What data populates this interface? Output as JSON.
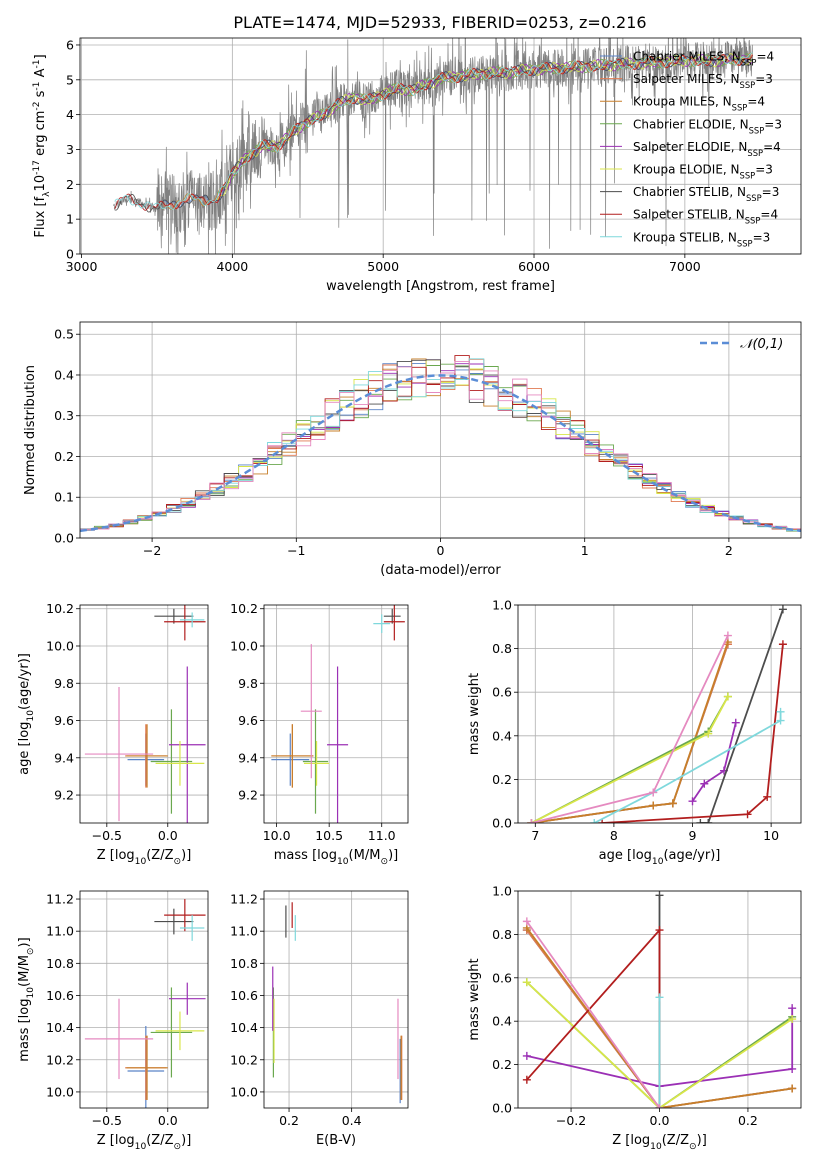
{
  "title": "PLATE=1474, MJD=52933, FIBERID=0253, z=0.216",
  "colors": {
    "chabrier_miles": "#5b84c8",
    "salpeter_miles": "#e07a52",
    "kroupa_miles": "#c77f2a",
    "chabrier_elodie": "#6aa84f",
    "salpeter_elodie": "#9b30b5",
    "kroupa_elodie": "#d8e64a",
    "chabrier_stelib": "#4d4d4d",
    "salpeter_stelib": "#b21e1e",
    "kroupa_stelib": "#7fd8dc",
    "pink_extra": "#e58ac0",
    "data": "#808080",
    "normal": "#5b8dd6"
  },
  "chart_data": [
    {
      "id": "spectrum",
      "type": "line",
      "xlabel": "wavelength [Angstrom, rest frame]",
      "ylabel": "Flux [f$_\\lambda$10$^{-17}$ erg cm$^{-2}$ s$^{-1}$ A$^{-1}$]",
      "xlim": [
        2990,
        7770
      ],
      "ylim": [
        0,
        6.2
      ],
      "xticks": [
        3000,
        4000,
        5000,
        6000,
        7000
      ],
      "yticks": [
        0,
        1,
        2,
        3,
        4,
        5,
        6
      ],
      "legend": [
        {
          "label": "Chabrier MILES, N$_{SSP}$=4",
          "color": "chabrier_miles"
        },
        {
          "label": "Salpeter MILES, N$_{SSP}$=3",
          "color": "salpeter_miles"
        },
        {
          "label": "Kroupa MILES, N$_{SSP}$=4",
          "color": "kroupa_miles"
        },
        {
          "label": "Chabrier ELODIE, N$_{SSP}$=3",
          "color": "chabrier_elodie"
        },
        {
          "label": "Salpeter ELODIE, N$_{SSP}$=4",
          "color": "salpeter_elodie"
        },
        {
          "label": "Kroupa ELODIE, N$_{SSP}$=3",
          "color": "kroupa_elodie"
        },
        {
          "label": "Chabrier STELIB, N$_{SSP}$=3",
          "color": "chabrier_stelib"
        },
        {
          "label": "Salpeter STELIB, N$_{SSP}$=4",
          "color": "salpeter_stelib"
        },
        {
          "label": "Kroupa STELIB, N$_{SSP}$=3",
          "color": "kroupa_stelib"
        }
      ],
      "continuum": [
        [
          3210,
          1.35
        ],
        [
          3300,
          1.6
        ],
        [
          3400,
          1.45
        ],
        [
          3500,
          1.3
        ],
        [
          3600,
          1.45
        ],
        [
          3700,
          1.55
        ],
        [
          3800,
          1.55
        ],
        [
          3900,
          1.6
        ],
        [
          3950,
          1.9
        ],
        [
          4000,
          2.3
        ],
        [
          4100,
          2.8
        ],
        [
          4200,
          3.1
        ],
        [
          4300,
          3.1
        ],
        [
          4400,
          3.5
        ],
        [
          4500,
          3.8
        ],
        [
          4600,
          4.0
        ],
        [
          4700,
          4.3
        ],
        [
          4800,
          4.5
        ],
        [
          4900,
          4.4
        ],
        [
          5000,
          4.6
        ],
        [
          5100,
          4.75
        ],
        [
          5200,
          4.7
        ],
        [
          5300,
          4.9
        ],
        [
          5400,
          5.05
        ],
        [
          5500,
          5.1
        ],
        [
          5600,
          5.15
        ],
        [
          5700,
          5.2
        ],
        [
          5800,
          5.2
        ],
        [
          5900,
          5.25
        ],
        [
          6000,
          5.3
        ],
        [
          6200,
          5.35
        ],
        [
          6400,
          5.4
        ],
        [
          6600,
          5.45
        ],
        [
          6800,
          5.5
        ],
        [
          7000,
          5.55
        ],
        [
          7200,
          5.55
        ],
        [
          7400,
          5.6
        ],
        [
          7450,
          5.6
        ]
      ]
    },
    {
      "id": "residuals",
      "type": "line",
      "xlabel": "(data-model)/error",
      "ylabel": "Normed distribution",
      "xlim": [
        -2.5,
        2.5
      ],
      "ylim": [
        0,
        0.53
      ],
      "xticks": [
        -2,
        -1,
        0,
        1,
        2
      ],
      "yticks": [
        0.0,
        0.1,
        0.2,
        0.3,
        0.4,
        0.5
      ],
      "legend": [
        {
          "label": "$\\mathcal{N}(0,1)$",
          "color": "normal"
        }
      ],
      "bin_width": 0.1,
      "bin_start": -2.5
    },
    {
      "id": "age_vs_Z",
      "type": "scatter",
      "xlabel": "Z [log$_{10}$($Z/Z_\\odot$)]",
      "ylabel": "age  [log$_{10}$($age/yr$)]",
      "xlim": [
        -0.72,
        0.33
      ],
      "ylim": [
        9.05,
        10.22
      ],
      "xticks": [
        -0.5,
        0.0
      ],
      "yticks": [
        9.2,
        9.4,
        9.6,
        9.8,
        10.0,
        10.2
      ],
      "points": [
        {
          "color": "chabrier_miles",
          "x": -0.18,
          "xerr": 0.15,
          "y": 9.39,
          "yerr": 0.14
        },
        {
          "color": "salpeter_miles",
          "x": -0.18,
          "xerr": 0.17,
          "y": 9.41,
          "yerr": 0.17
        },
        {
          "color": "kroupa_miles",
          "x": -0.17,
          "xerr": 0.17,
          "y": 9.41,
          "yerr": 0.17
        },
        {
          "color": "chabrier_elodie",
          "x": 0.03,
          "xerr": 0.17,
          "y": 9.38,
          "yerr": 0.28
        },
        {
          "color": "salpeter_elodie",
          "x": 0.16,
          "xerr": 0.15,
          "y": 9.47,
          "yerr": 0.42
        },
        {
          "color": "kroupa_elodie",
          "x": 0.1,
          "xerr": 0.2,
          "y": 9.37,
          "yerr": 0.12
        },
        {
          "color": "chabrier_stelib",
          "x": 0.05,
          "xerr": 0.16,
          "y": 10.16,
          "yerr": 0.04
        },
        {
          "color": "salpeter_stelib",
          "x": 0.14,
          "xerr": 0.17,
          "y": 10.13,
          "yerr": 0.1
        },
        {
          "color": "kroupa_stelib",
          "x": 0.2,
          "xerr": 0.1,
          "y": 10.14,
          "yerr": 0.04
        },
        {
          "color": "pink_extra",
          "x": -0.4,
          "xerr": 0.28,
          "y": 9.42,
          "yerr": 0.36
        }
      ]
    },
    {
      "id": "age_vs_mass",
      "type": "scatter",
      "xlabel": "mass [log$_{10}$($M/M_\\odot$)]",
      "ylabel": "",
      "xlim": [
        9.88,
        11.25
      ],
      "ylim": [
        9.05,
        10.22
      ],
      "xticks": [
        10.0,
        10.5,
        11.0
      ],
      "yticks": [
        9.2,
        9.4,
        9.6,
        9.8,
        10.0,
        10.2
      ],
      "points": [
        {
          "color": "chabrier_miles",
          "x": 10.13,
          "xerr": 0.18,
          "y": 9.39,
          "yerr": 0.14
        },
        {
          "color": "salpeter_miles",
          "x": 10.15,
          "xerr": 0.2,
          "y": 9.41,
          "yerr": 0.17
        },
        {
          "color": "kroupa_miles",
          "x": 10.15,
          "xerr": 0.2,
          "y": 9.41,
          "yerr": 0.17
        },
        {
          "color": "chabrier_elodie",
          "x": 10.37,
          "xerr": 0.12,
          "y": 9.38,
          "yerr": 0.28
        },
        {
          "color": "salpeter_elodie",
          "x": 10.58,
          "xerr": 0.1,
          "y": 9.47,
          "yerr": 0.42
        },
        {
          "color": "kroupa_elodie",
          "x": 10.38,
          "xerr": 0.12,
          "y": 9.37,
          "yerr": 0.12
        },
        {
          "color": "chabrier_stelib",
          "x": 11.1,
          "xerr": 0.08,
          "y": 10.16,
          "yerr": 0.04
        },
        {
          "color": "salpeter_stelib",
          "x": 11.12,
          "xerr": 0.1,
          "y": 10.13,
          "yerr": 0.1
        },
        {
          "color": "kroupa_stelib",
          "x": 11.0,
          "xerr": 0.08,
          "y": 10.12,
          "yerr": 0.05
        },
        {
          "color": "pink_extra",
          "x": 10.33,
          "xerr": 0.1,
          "y": 9.65,
          "yerr": 0.36
        }
      ]
    },
    {
      "id": "mass_weight_vs_age",
      "type": "line",
      "xlabel": "age  [log$_{10}$($age/yr$)]",
      "ylabel": "mass weight",
      "xlim": [
        6.78,
        10.38
      ],
      "ylim": [
        0,
        1.0
      ],
      "xticks": [
        7,
        8,
        9,
        10
      ],
      "yticks": [
        0.0,
        0.2,
        0.4,
        0.6,
        0.8,
        1.0
      ],
      "series": [
        {
          "color": "chabrier_miles",
          "points": [
            [
              6.95,
              0.0
            ],
            [
              8.5,
              0.08
            ],
            [
              8.75,
              0.09
            ],
            [
              9.45,
              0.82
            ]
          ]
        },
        {
          "color": "salpeter_miles",
          "points": [
            [
              6.95,
              0.0
            ],
            [
              8.5,
              0.08
            ],
            [
              8.75,
              0.09
            ],
            [
              9.45,
              0.82
            ]
          ]
        },
        {
          "color": "kroupa_miles",
          "points": [
            [
              6.95,
              0.0
            ],
            [
              8.5,
              0.08
            ],
            [
              8.75,
              0.09
            ],
            [
              9.45,
              0.83
            ]
          ]
        },
        {
          "color": "chabrier_elodie",
          "points": [
            [
              6.95,
              0.0
            ],
            [
              9.2,
              0.42
            ],
            [
              9.45,
              0.58
            ]
          ]
        },
        {
          "color": "salpeter_elodie",
          "points": [
            [
              9.0,
              0.1
            ],
            [
              9.15,
              0.18
            ],
            [
              9.4,
              0.24
            ],
            [
              9.55,
              0.46
            ]
          ]
        },
        {
          "color": "kroupa_elodie",
          "points": [
            [
              6.95,
              0.0
            ],
            [
              9.2,
              0.41
            ],
            [
              9.45,
              0.58
            ]
          ]
        },
        {
          "color": "chabrier_stelib",
          "points": [
            [
              9.1,
              0.0
            ],
            [
              9.2,
              0.0
            ],
            [
              10.15,
              0.98
            ]
          ]
        },
        {
          "color": "salpeter_stelib",
          "points": [
            [
              7.85,
              0.0
            ],
            [
              9.7,
              0.04
            ],
            [
              9.95,
              0.12
            ],
            [
              10.15,
              0.82
            ]
          ]
        },
        {
          "color": "kroupa_stelib",
          "points": [
            [
              7.75,
              0.0
            ],
            [
              8.5,
              0.14
            ],
            [
              10.12,
              0.47
            ],
            [
              10.12,
              0.51
            ]
          ]
        },
        {
          "color": "pink_extra",
          "points": [
            [
              6.95,
              0.0
            ],
            [
              8.5,
              0.14
            ],
            [
              9.45,
              0.86
            ]
          ]
        }
      ]
    },
    {
      "id": "mass_vs_Z",
      "type": "scatter",
      "xlabel": "Z [log$_{10}$($Z/Z_\\odot$)]",
      "ylabel": "mass [log$_{10}$($M/M_\\odot$)]",
      "xlim": [
        -0.72,
        0.33
      ],
      "ylim": [
        9.9,
        11.25
      ],
      "xticks": [
        -0.5,
        0.0
      ],
      "yticks": [
        10.0,
        10.2,
        10.4,
        10.6,
        10.8,
        11.0,
        11.2
      ],
      "points": [
        {
          "color": "chabrier_miles",
          "x": -0.18,
          "xerr": 0.15,
          "y": 10.13,
          "yerr": 0.28
        },
        {
          "color": "salpeter_miles",
          "x": -0.18,
          "xerr": 0.17,
          "y": 10.15,
          "yerr": 0.2
        },
        {
          "color": "kroupa_miles",
          "x": -0.17,
          "xerr": 0.17,
          "y": 10.15,
          "yerr": 0.2
        },
        {
          "color": "chabrier_elodie",
          "x": 0.03,
          "xerr": 0.17,
          "y": 10.37,
          "yerr": 0.28
        },
        {
          "color": "salpeter_elodie",
          "x": 0.16,
          "xerr": 0.15,
          "y": 10.58,
          "yerr": 0.1
        },
        {
          "color": "kroupa_elodie",
          "x": 0.1,
          "xerr": 0.2,
          "y": 10.38,
          "yerr": 0.12
        },
        {
          "color": "chabrier_stelib",
          "x": 0.05,
          "xerr": 0.16,
          "y": 11.06,
          "yerr": 0.08
        },
        {
          "color": "salpeter_stelib",
          "x": 0.14,
          "xerr": 0.17,
          "y": 11.1,
          "yerr": 0.1
        },
        {
          "color": "kroupa_stelib",
          "x": 0.2,
          "xerr": 0.1,
          "y": 11.02,
          "yerr": 0.08
        },
        {
          "color": "pink_extra",
          "x": -0.4,
          "xerr": 0.28,
          "y": 10.33,
          "yerr": 0.25
        }
      ]
    },
    {
      "id": "mass_vs_EBV",
      "type": "scatter",
      "xlabel": "E(B-V)",
      "ylabel": "",
      "xlim": [
        0.12,
        0.58
      ],
      "ylim": [
        9.9,
        11.25
      ],
      "xticks": [
        0.2,
        0.4
      ],
      "yticks": [
        10.0,
        10.2,
        10.4,
        10.6,
        10.8,
        11.0,
        11.2
      ],
      "points": [
        {
          "color": "chabrier_miles",
          "x": 0.555,
          "y": 10.13,
          "yerr": 0.2
        },
        {
          "color": "salpeter_miles",
          "x": 0.56,
          "y": 10.15,
          "yerr": 0.2
        },
        {
          "color": "kroupa_miles",
          "x": 0.558,
          "y": 10.15,
          "yerr": 0.2
        },
        {
          "color": "chabrier_elodie",
          "x": 0.15,
          "y": 10.37,
          "yerr": 0.28
        },
        {
          "color": "salpeter_elodie",
          "x": 0.148,
          "y": 10.58,
          "yerr": 0.2
        },
        {
          "color": "kroupa_elodie",
          "x": 0.152,
          "y": 10.38,
          "yerr": 0.2
        },
        {
          "color": "chabrier_stelib",
          "x": 0.19,
          "y": 11.06,
          "yerr": 0.1
        },
        {
          "color": "salpeter_stelib",
          "x": 0.21,
          "y": 11.1,
          "yerr": 0.08
        },
        {
          "color": "kroupa_stelib",
          "x": 0.22,
          "y": 11.02,
          "yerr": 0.08
        },
        {
          "color": "pink_extra",
          "x": 0.548,
          "y": 10.33,
          "yerr": 0.25
        }
      ]
    },
    {
      "id": "mass_weight_vs_Z",
      "type": "line",
      "xlabel": "Z [log$_{10}$($Z/Z_\\odot$)]",
      "ylabel": "mass weight",
      "xlim": [
        -0.32,
        0.32
      ],
      "ylim": [
        0,
        1.0
      ],
      "xticks": [
        -0.2,
        0.0,
        0.2
      ],
      "yticks": [
        0.0,
        0.2,
        0.4,
        0.6,
        0.8,
        1.0
      ],
      "series": [
        {
          "color": "chabrier_miles",
          "points": [
            [
              -0.3,
              0.82
            ],
            [
              0.0,
              0.0
            ],
            [
              0.3,
              0.09
            ]
          ]
        },
        {
          "color": "salpeter_miles",
          "points": [
            [
              -0.3,
              0.82
            ],
            [
              0.0,
              0.0
            ],
            [
              0.3,
              0.09
            ]
          ]
        },
        {
          "color": "kroupa_miles",
          "points": [
            [
              -0.3,
              0.83
            ],
            [
              0.0,
              0.0
            ],
            [
              0.3,
              0.09
            ]
          ]
        },
        {
          "color": "chabrier_elodie",
          "points": [
            [
              -0.3,
              0.58
            ],
            [
              0.0,
              0.0
            ],
            [
              0.3,
              0.42
            ]
          ]
        },
        {
          "color": "salpeter_elodie",
          "points": [
            [
              -0.3,
              0.24
            ],
            [
              0.0,
              0.1
            ],
            [
              0.3,
              0.18
            ],
            [
              0.3,
              0.46
            ]
          ]
        },
        {
          "color": "kroupa_elodie",
          "points": [
            [
              -0.3,
              0.58
            ],
            [
              0.0,
              0.0
            ],
            [
              0.3,
              0.41
            ]
          ]
        },
        {
          "color": "chabrier_stelib",
          "points": [
            [
              0.0,
              0.98
            ],
            [
              0.0,
              0.0
            ]
          ]
        },
        {
          "color": "salpeter_stelib",
          "points": [
            [
              -0.3,
              0.13
            ],
            [
              0.0,
              0.82
            ],
            [
              0.0,
              0.0
            ]
          ]
        },
        {
          "color": "kroupa_stelib",
          "points": [
            [
              0.0,
              0.51
            ],
            [
              0.0,
              0.0
            ]
          ]
        },
        {
          "color": "pink_extra",
          "points": [
            [
              -0.3,
              0.86
            ],
            [
              0.0,
              0.0
            ]
          ]
        }
      ]
    }
  ]
}
